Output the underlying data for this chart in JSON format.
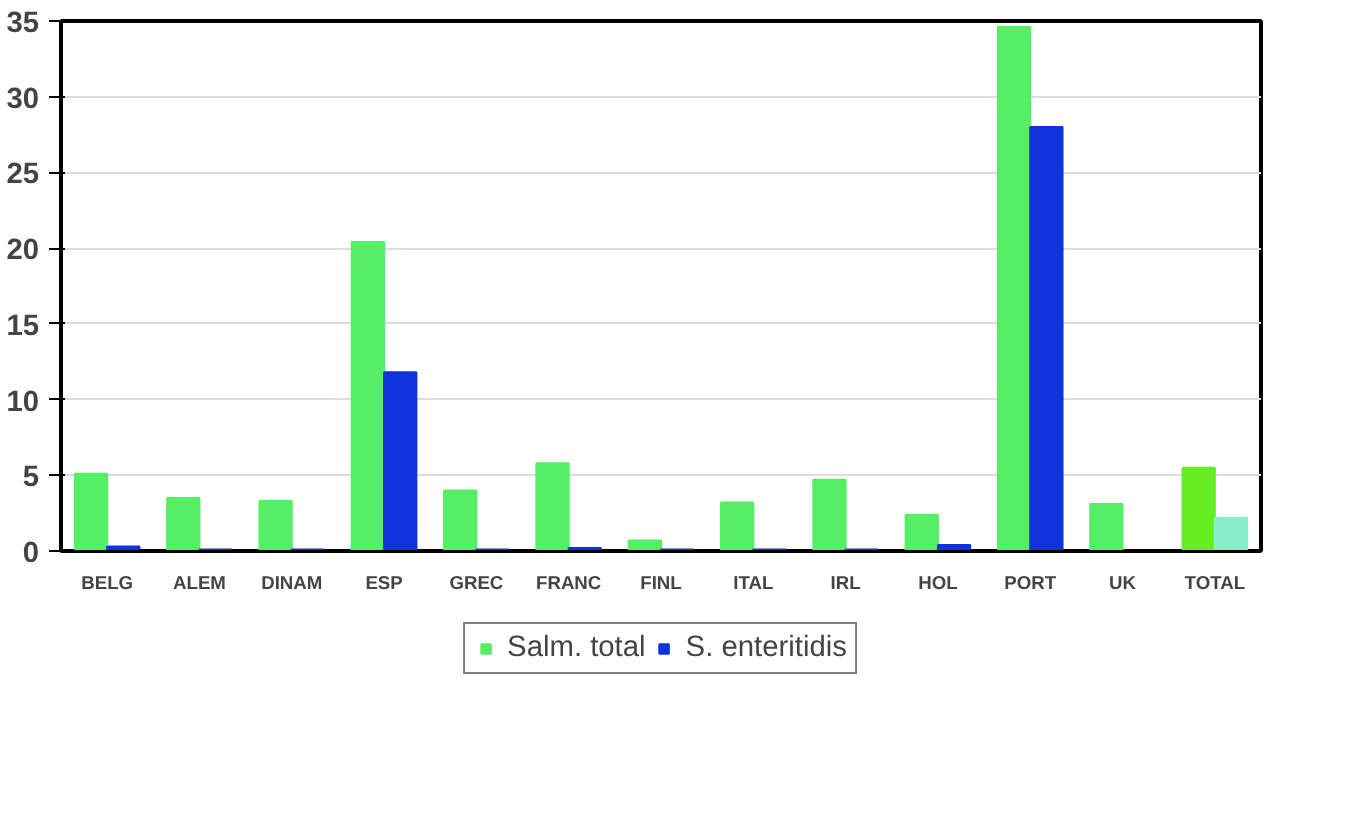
{
  "chart_data": {
    "type": "bar",
    "categories": [
      "BELG",
      "ALEM",
      "DINAM",
      "ESP",
      "GREC",
      "FRANC",
      "FINL",
      "ITAL",
      "IRL",
      "HOL",
      "PORT",
      "UK",
      "TOTAL"
    ],
    "series": [
      {
        "name": "Salm. total",
        "color": "#55ee66",
        "colors": [
          "#55ee66",
          "#55ee66",
          "#55ee66",
          "#55ee66",
          "#55ee66",
          "#55ee66",
          "#55ee66",
          "#55ee66",
          "#55ee66",
          "#55ee66",
          "#55ee66",
          "#55ee66",
          "#66ee22"
        ],
        "values": [
          5.1,
          3.5,
          3.3,
          20.4,
          4.0,
          5.8,
          0.7,
          3.2,
          4.7,
          2.4,
          34.6,
          3.1,
          5.5
        ]
      },
      {
        "name": "S. enteritidis",
        "color": "#1133dd",
        "colors": [
          "#1133dd",
          "#1133dd",
          "#1133dd",
          "#1133dd",
          "#1133dd",
          "#1133dd",
          "#1133dd",
          "#1133dd",
          "#1133dd",
          "#1133dd",
          "#1133dd",
          "#1133dd",
          "#88eecc"
        ],
        "values": [
          0.3,
          0.1,
          0.1,
          11.8,
          0.1,
          0.2,
          0.1,
          0.1,
          0.1,
          0.4,
          28.0,
          0.0,
          2.2
        ]
      }
    ],
    "ylim": [
      0,
      35
    ],
    "yticks": [
      0,
      5,
      10,
      15,
      20,
      25,
      30,
      35
    ],
    "grid": "y",
    "legend": "bottom"
  }
}
